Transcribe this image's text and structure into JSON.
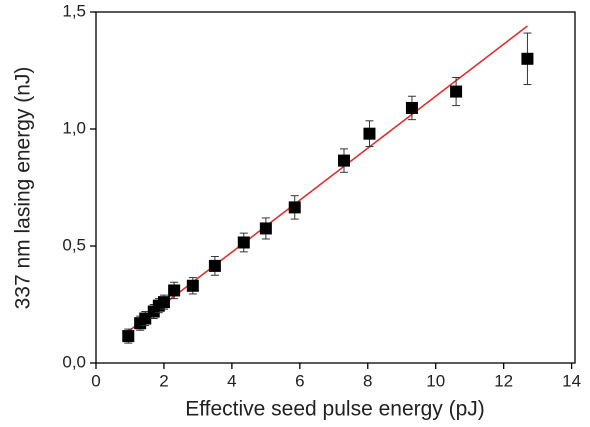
{
  "chart_data": {
    "type": "scatter",
    "x_label": "Effective seed pulse energy (pJ)",
    "y_label": "337 nm lasing energy (nJ)",
    "xlim": [
      0,
      14.1
    ],
    "ylim": [
      0,
      1.5
    ],
    "xticks": [
      0,
      2,
      4,
      6,
      8,
      10,
      12,
      14
    ],
    "yticks": [
      {
        "value": 0,
        "label": "0,0"
      },
      {
        "value": 0.5,
        "label": "0,5"
      },
      {
        "value": 1,
        "label": "1,0"
      },
      {
        "value": 1.5,
        "label": "1,5"
      }
    ],
    "x": [
      0.95,
      1.3,
      1.45,
      1.7,
      1.85,
      2.0,
      2.3,
      2.85,
      3.5,
      4.35,
      5.0,
      5.85,
      7.3,
      8.05,
      9.3,
      10.6,
      12.7
    ],
    "series": [
      {
        "color": "#000000",
        "values": [
          0.115,
          0.17,
          0.19,
          0.22,
          0.245,
          0.26,
          0.31,
          0.33,
          0.415,
          0.515,
          0.575,
          0.665,
          0.865,
          0.98,
          1.09,
          1.16,
          1.3
        ],
        "errors": [
          0.03,
          0.03,
          0.03,
          0.03,
          0.03,
          0.03,
          0.035,
          0.035,
          0.04,
          0.04,
          0.045,
          0.05,
          0.05,
          0.055,
          0.05,
          0.06,
          0.11
        ]
      }
    ],
    "fit": {
      "color": "#e03030",
      "x": [
        0.95,
        12.7
      ],
      "values": [
        0.135,
        1.44
      ]
    }
  }
}
